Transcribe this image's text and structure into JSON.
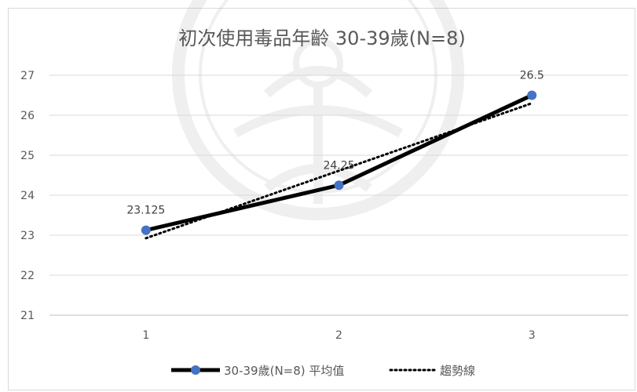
{
  "chart_data": {
    "type": "line",
    "title": "初次使用毒品年齡 30-39歲(N=8)",
    "categories": [
      "1",
      "2",
      "3"
    ],
    "series": [
      {
        "name": "30-39歲(N=8) 平均值",
        "values": [
          23.125,
          24.25,
          26.5
        ],
        "data_labels": [
          "23.125",
          "24.25",
          "26.5"
        ],
        "color": "#000000",
        "marker_color": "#4472c4"
      },
      {
        "name": "趨勢線",
        "type": "linear-trendline",
        "values": [
          22.925,
          24.6125,
          26.3
        ],
        "color": "#000000",
        "style": "dotted"
      }
    ],
    "yticks": [
      "21",
      "22",
      "23",
      "24",
      "25",
      "26",
      "27"
    ],
    "ylim": [
      21,
      27
    ],
    "grid": true,
    "legend": "bottom",
    "xlabel": "",
    "ylabel": ""
  }
}
